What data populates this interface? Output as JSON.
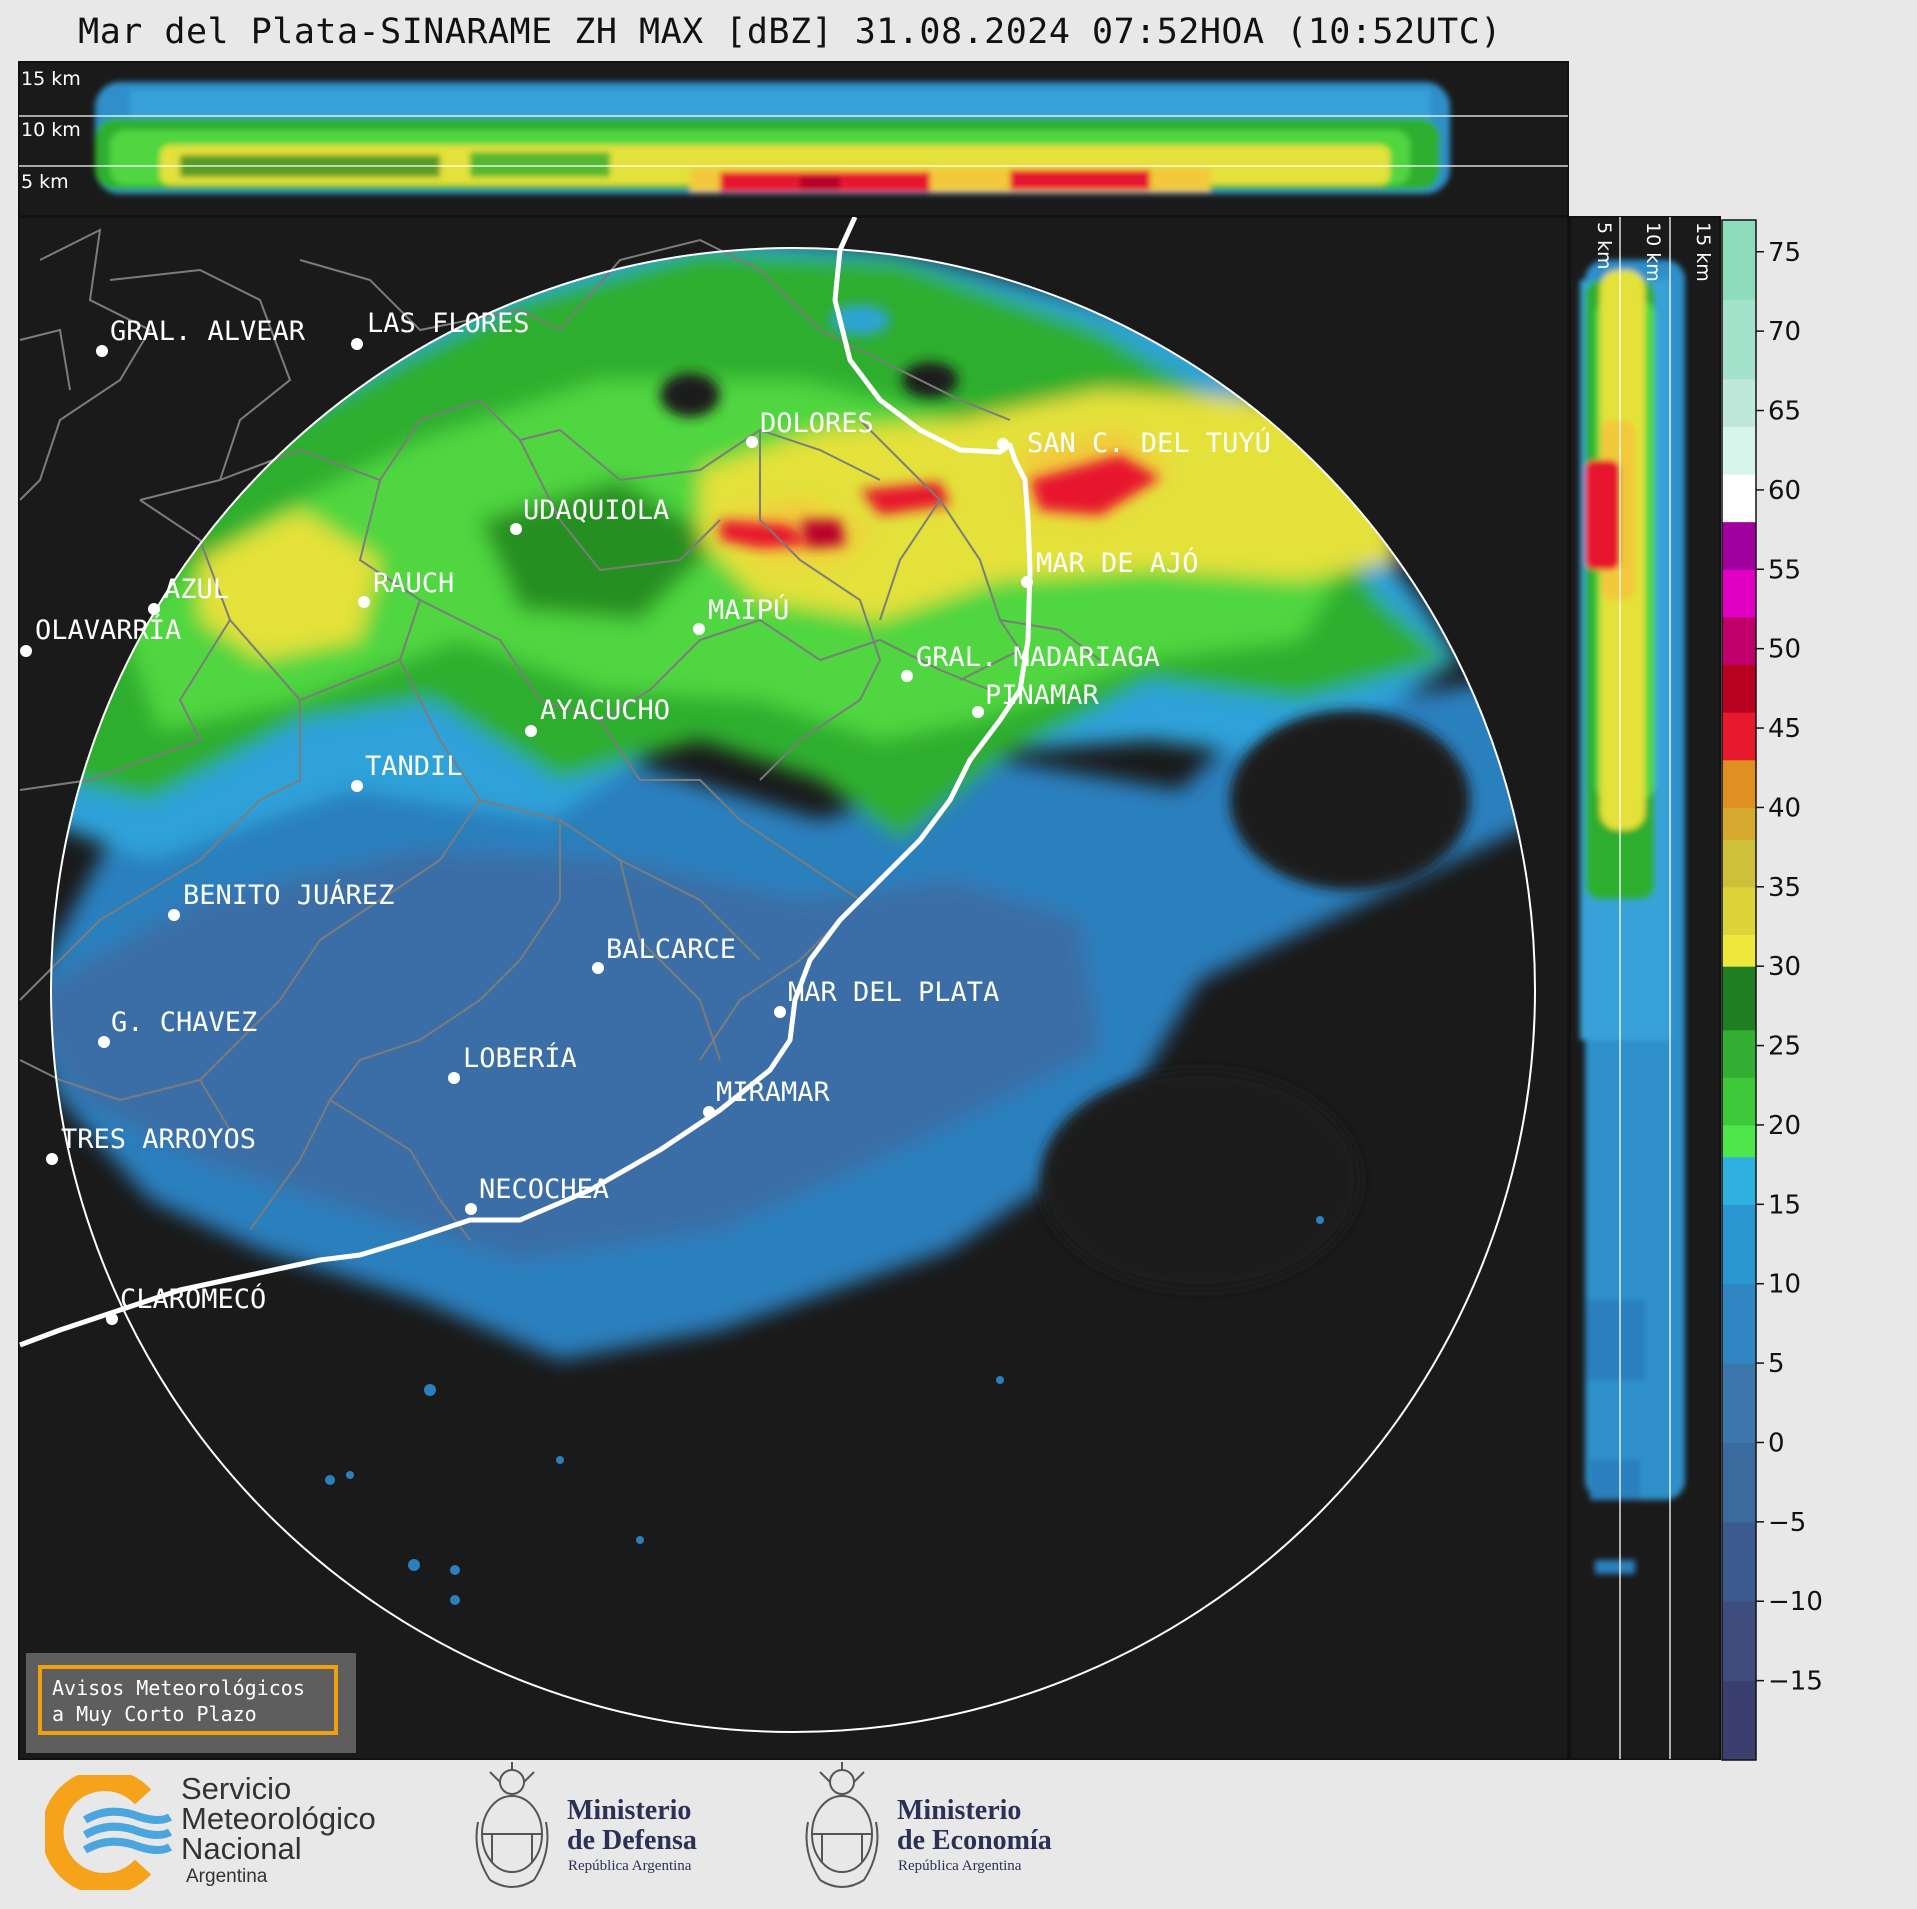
{
  "title": "Mar del Plata-SINARAME ZH MAX [dBZ] 31.08.2024 07:52HOA (10:52UTC)",
  "altitude_labels": {
    "top_15": "15 km",
    "top_10": "10 km",
    "top_5": "5 km",
    "side_5": "5 km",
    "side_10": "10 km",
    "side_15": "15 km"
  },
  "colorbar": {
    "ticks": [
      "75",
      "70",
      "65",
      "60",
      "55",
      "50",
      "45",
      "40",
      "35",
      "30",
      "25",
      "20",
      "15",
      "10",
      "5",
      "0",
      "−5",
      "−10",
      "−15"
    ],
    "values": [
      75,
      70,
      65,
      60,
      55,
      50,
      45,
      40,
      35,
      30,
      25,
      20,
      15,
      10,
      5,
      0,
      -5,
      -10,
      -15
    ],
    "range": [
      -20,
      77
    ]
  },
  "cities": [
    "GRAL. ALVEAR",
    "LAS FLORES",
    "DOLORES",
    "SAN C. DEL TUYÚ",
    "UDAQUIOLA",
    "AZUL",
    "RAUCH",
    "OLAVARRÍA",
    "MAIPÚ",
    "MAR DE AJÓ",
    "GRAL. MADARIAGA",
    "PINAMAR",
    "AYACUCHO",
    "TANDIL",
    "BENITO JUÁREZ",
    "BALCARCE",
    "MAR DEL PLATA",
    "G. CHAVEZ",
    "LOBERÍA",
    "MIRAMAR",
    "TRES ARROYOS",
    "NECOCHEA",
    "CLAROMECÓ"
  ],
  "avisos": {
    "line1": "Avisos Meteorológicos",
    "line2": "a Muy Corto Plazo"
  },
  "footer": {
    "smn_line1": "Servicio",
    "smn_line2": "Meteorológico",
    "smn_line3": "Nacional",
    "smn_country": "Argentina",
    "defensa_line1": "Ministerio",
    "defensa_line2": "de Defensa",
    "defensa_sub": "República Argentina",
    "economia_line1": "Ministerio",
    "economia_line2": "de Economía",
    "economia_sub": "República Argentina"
  },
  "colors": {
    "background": "#1a1a1a",
    "page": "#e8e8e8",
    "coast": "#ffffff",
    "border": "#888888",
    "avisos_border": "#f0a10f"
  }
}
